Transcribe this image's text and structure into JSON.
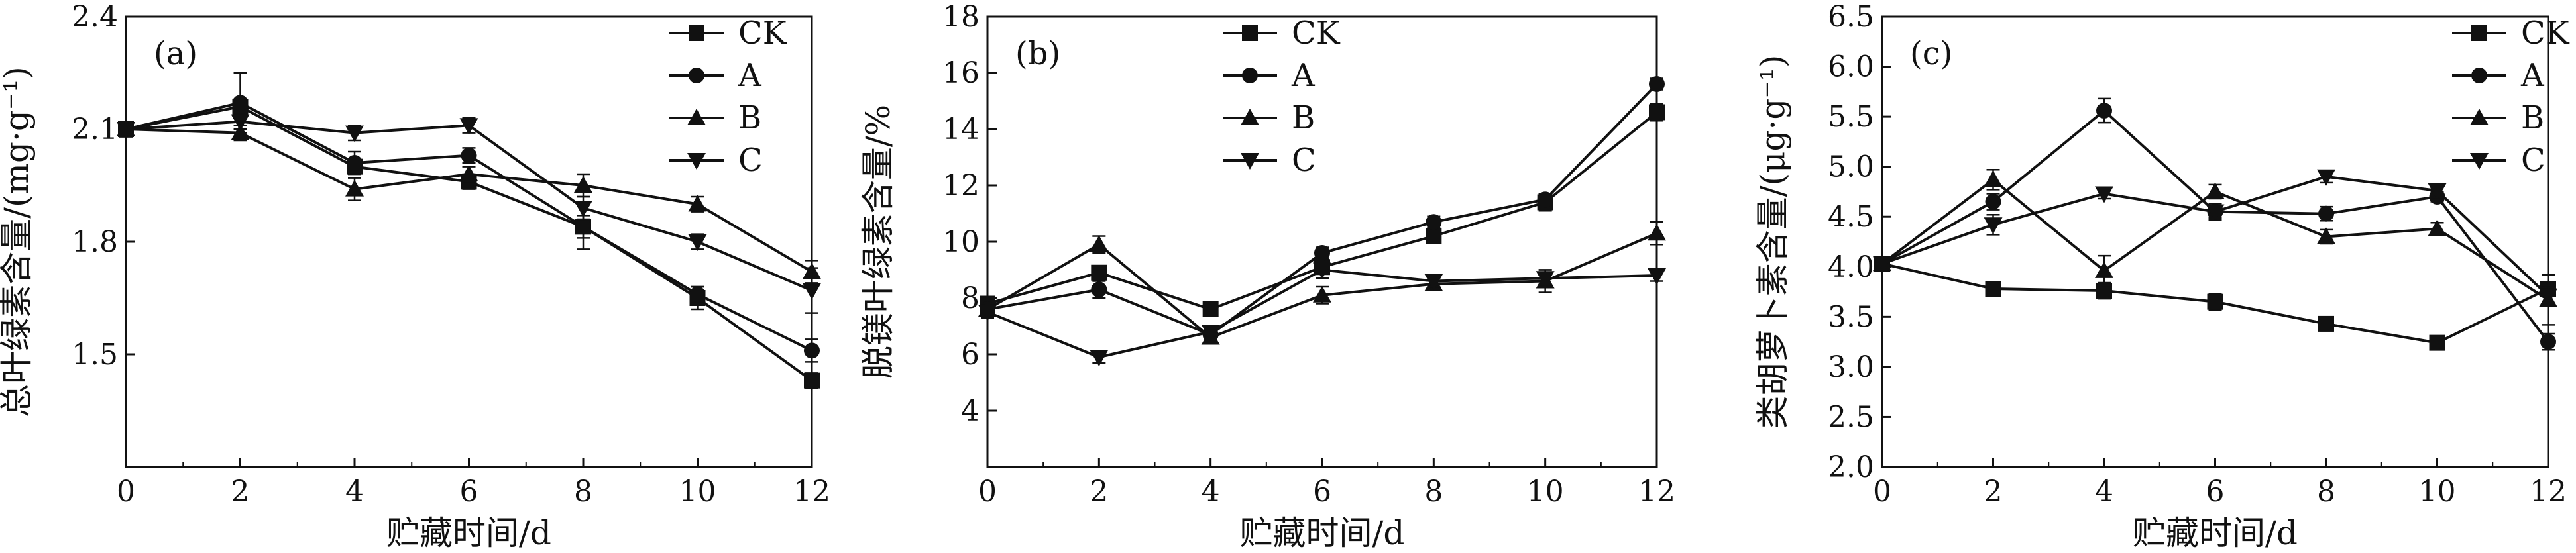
{
  "chart_data": [
    {
      "type": "line",
      "panel_label": "(a)",
      "xlabel": "贮藏时间/d",
      "ylabel": "总叶绿素含量/(mg·g⁻¹)",
      "x": [
        0,
        2,
        4,
        6,
        8,
        10,
        12
      ],
      "xlim": [
        0,
        12
      ],
      "xticks": [
        "0",
        "2",
        "4",
        "6",
        "8",
        "10",
        "12"
      ],
      "ylim": [
        1.2,
        2.4
      ],
      "yticks": [
        "1.5",
        "1.8",
        "2.1",
        "2.4"
      ],
      "legend_position": "top-right",
      "series": [
        {
          "name": "CK",
          "marker": "square",
          "values": [
            2.1,
            2.16,
            2.0,
            1.96,
            1.84,
            1.65,
            1.43
          ],
          "errors": [
            0.02,
            0.02,
            0.02,
            0.02,
            0.06,
            0.03,
            0.02
          ]
        },
        {
          "name": "A",
          "marker": "circle",
          "values": [
            2.1,
            2.17,
            2.01,
            2.03,
            1.84,
            1.66,
            1.51
          ],
          "errors": [
            0.02,
            0.08,
            0.03,
            0.02,
            0.03,
            0.02,
            0.03
          ]
        },
        {
          "name": "B",
          "marker": "triangle-up",
          "values": [
            2.1,
            2.09,
            1.94,
            1.98,
            1.95,
            1.9,
            1.72
          ],
          "errors": [
            0.02,
            0.02,
            0.03,
            0.02,
            0.03,
            0.02,
            0.03
          ]
        },
        {
          "name": "C",
          "marker": "triangle-down",
          "values": [
            2.1,
            2.12,
            2.09,
            2.11,
            1.89,
            1.8,
            1.67
          ],
          "errors": [
            0.02,
            0.02,
            0.02,
            0.02,
            0.03,
            0.02,
            0.06
          ]
        }
      ]
    },
    {
      "type": "line",
      "panel_label": "(b)",
      "xlabel": "贮藏时间/d",
      "ylabel": "脱镁叶绿素含量/%",
      "x": [
        0,
        2,
        4,
        6,
        8,
        10,
        12
      ],
      "xlim": [
        0,
        12
      ],
      "xticks": [
        "0",
        "2",
        "4",
        "6",
        "8",
        "10",
        "12"
      ],
      "ylim": [
        2,
        18
      ],
      "yticks": [
        "4",
        "6",
        "8",
        "10",
        "12",
        "14",
        "16",
        "18"
      ],
      "legend_position": "top-center",
      "series": [
        {
          "name": "CK",
          "marker": "square",
          "values": [
            7.8,
            8.9,
            7.6,
            9.1,
            10.2,
            11.4,
            14.6
          ],
          "errors": [
            0.2,
            0.2,
            0.2,
            0.2,
            0.2,
            0.3,
            0.3
          ]
        },
        {
          "name": "A",
          "marker": "circle",
          "values": [
            7.6,
            8.3,
            6.7,
            9.6,
            10.7,
            11.5,
            15.6
          ],
          "errors": [
            0.2,
            0.3,
            0.3,
            0.2,
            0.2,
            0.2,
            0.2
          ]
        },
        {
          "name": "B",
          "marker": "triangle-up",
          "values": [
            7.6,
            9.9,
            6.6,
            8.1,
            8.5,
            8.6,
            10.3
          ],
          "errors": [
            0.2,
            0.3,
            0.2,
            0.3,
            0.2,
            0.4,
            0.4
          ]
        },
        {
          "name": "C",
          "marker": "triangle-down",
          "values": [
            7.5,
            5.9,
            6.8,
            9.0,
            8.6,
            8.7,
            8.8
          ],
          "errors": [
            0.2,
            0.2,
            0.2,
            0.3,
            0.2,
            0.3,
            0.2
          ]
        }
      ]
    },
    {
      "type": "line",
      "panel_label": "(c)",
      "xlabel": "贮藏时间/d",
      "ylabel": "类胡萝卜素含量/(μg·g⁻¹)",
      "x": [
        0,
        2,
        4,
        6,
        8,
        10,
        12
      ],
      "xlim": [
        0,
        12
      ],
      "xticks": [
        "0",
        "2",
        "4",
        "6",
        "8",
        "10",
        "12"
      ],
      "ylim": [
        2.0,
        6.5
      ],
      "yticks": [
        "2.0",
        "2.5",
        "3.0",
        "3.5",
        "4.0",
        "4.5",
        "5.0",
        "5.5",
        "6.0",
        "6.5"
      ],
      "legend_position": "top-right",
      "series": [
        {
          "name": "CK",
          "marker": "square",
          "values": [
            4.03,
            3.78,
            3.76,
            3.65,
            3.43,
            3.24,
            3.78
          ],
          "errors": [
            0.05,
            0.05,
            0.08,
            0.08,
            0.07,
            0.06,
            0.05
          ]
        },
        {
          "name": "A",
          "marker": "circle",
          "values": [
            4.03,
            4.65,
            5.56,
            4.55,
            4.53,
            4.7,
            3.25
          ],
          "errors": [
            0.05,
            0.08,
            0.12,
            0.08,
            0.07,
            0.05,
            0.08
          ]
        },
        {
          "name": "B",
          "marker": "triangle-up",
          "values": [
            4.03,
            4.87,
            3.96,
            4.75,
            4.3,
            4.38,
            3.67
          ],
          "errors": [
            0.05,
            0.1,
            0.15,
            0.07,
            0.07,
            0.06,
            0.25
          ]
        },
        {
          "name": "C",
          "marker": "triangle-down",
          "values": [
            4.03,
            4.42,
            4.73,
            4.55,
            4.9,
            4.76,
            3.71
          ],
          "errors": [
            0.05,
            0.1,
            0.05,
            0.06,
            0.06,
            0.07,
            0.1
          ]
        }
      ]
    }
  ]
}
